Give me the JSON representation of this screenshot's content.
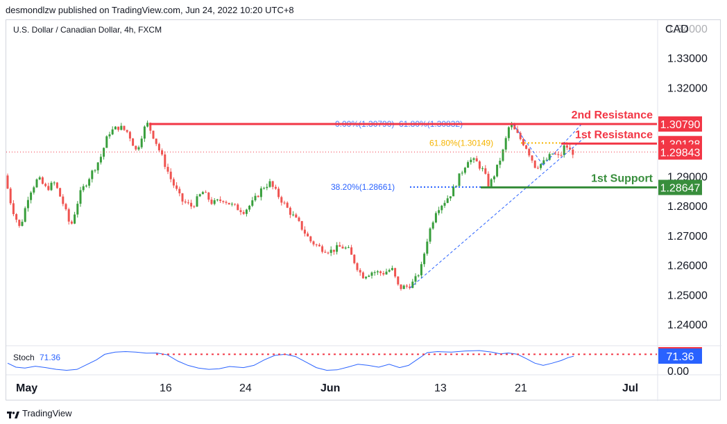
{
  "header": {
    "published": "desmondlzw published on TradingView.com, Jun 24, 2022 10:20 UTC+8"
  },
  "footer": {
    "brand": "TradingView"
  },
  "chart_data": {
    "type": "candlestick",
    "symbol_label": "U.S. Dollar / Canadian Dollar, 4h, FXCM",
    "currency_label": "CAD",
    "price_axis": {
      "ticks": [
        "1.34000",
        "1.33000",
        "1.32000",
        "1.29000",
        "1.28000",
        "1.27000",
        "1.26000",
        "1.25000",
        "1.24000"
      ],
      "ylim": [
        1.233,
        1.343
      ]
    },
    "time_axis": {
      "ticks": [
        "May",
        "16",
        "24",
        "Jun",
        "13",
        "21",
        "Jul"
      ]
    },
    "price_path": [
      [
        0,
        1.2905
      ],
      [
        10,
        1.28
      ],
      [
        22,
        1.2725
      ],
      [
        35,
        1.2845
      ],
      [
        48,
        1.2895
      ],
      [
        60,
        1.286
      ],
      [
        72,
        1.288
      ],
      [
        85,
        1.2805
      ],
      [
        95,
        1.273
      ],
      [
        108,
        1.284
      ],
      [
        122,
        1.29
      ],
      [
        138,
        1.2965
      ],
      [
        150,
        1.305
      ],
      [
        165,
        1.307
      ],
      [
        178,
        1.305
      ],
      [
        190,
        1.2985
      ],
      [
        200,
        1.306
      ],
      [
        206,
        1.3079
      ],
      [
        216,
        1.303
      ],
      [
        228,
        1.296
      ],
      [
        240,
        1.289
      ],
      [
        255,
        1.282
      ],
      [
        270,
        1.28
      ],
      [
        285,
        1.285
      ],
      [
        300,
        1.281
      ],
      [
        315,
        1.2825
      ],
      [
        330,
        1.28
      ],
      [
        345,
        1.2785
      ],
      [
        358,
        1.2815
      ],
      [
        372,
        1.2865
      ],
      [
        382,
        1.288
      ],
      [
        395,
        1.2835
      ],
      [
        410,
        1.2785
      ],
      [
        425,
        1.274
      ],
      [
        440,
        1.2685
      ],
      [
        455,
        1.266
      ],
      [
        470,
        1.265
      ],
      [
        485,
        1.2665
      ],
      [
        495,
        1.2655
      ],
      [
        505,
        1.261
      ],
      [
        515,
        1.2565
      ],
      [
        530,
        1.258
      ],
      [
        545,
        1.2575
      ],
      [
        558,
        1.259
      ],
      [
        568,
        1.2525
      ],
      [
        580,
        1.253
      ],
      [
        590,
        1.2545
      ],
      [
        600,
        1.259
      ],
      [
        610,
        1.27
      ],
      [
        622,
        1.279
      ],
      [
        635,
        1.282
      ],
      [
        645,
        1.285
      ],
      [
        655,
        1.29
      ],
      [
        668,
        1.296
      ],
      [
        680,
        1.295
      ],
      [
        690,
        1.292
      ],
      [
        698,
        1.2868
      ],
      [
        708,
        1.292
      ],
      [
        718,
        1.2985
      ],
      [
        728,
        1.308
      ],
      [
        740,
        1.304
      ],
      [
        752,
        1.3
      ],
      [
        765,
        1.2935
      ],
      [
        778,
        1.295
      ],
      [
        790,
        1.298
      ],
      [
        800,
        1.2965
      ],
      [
        808,
        1.301
      ],
      [
        816,
        1.2984
      ]
    ],
    "stochastic": {
      "label": "Stoch",
      "value": "71.36",
      "value_num": 71.36,
      "axis_ticks": [
        "0.00"
      ],
      "path": [
        [
          0,
          40
        ],
        [
          12,
          22
        ],
        [
          25,
          18
        ],
        [
          40,
          26
        ],
        [
          55,
          20
        ],
        [
          70,
          12
        ],
        [
          85,
          8
        ],
        [
          100,
          12
        ],
        [
          115,
          35
        ],
        [
          128,
          55
        ],
        [
          140,
          80
        ],
        [
          155,
          90
        ],
        [
          170,
          92
        ],
        [
          185,
          90
        ],
        [
          200,
          85
        ],
        [
          215,
          86
        ],
        [
          230,
          78
        ],
        [
          245,
          50
        ],
        [
          260,
          30
        ],
        [
          275,
          18
        ],
        [
          290,
          12
        ],
        [
          305,
          15
        ],
        [
          320,
          25
        ],
        [
          340,
          20
        ],
        [
          355,
          30
        ],
        [
          370,
          55
        ],
        [
          385,
          75
        ],
        [
          400,
          80
        ],
        [
          415,
          70
        ],
        [
          430,
          45
        ],
        [
          445,
          20
        ],
        [
          460,
          8
        ],
        [
          475,
          10
        ],
        [
          490,
          22
        ],
        [
          505,
          35
        ],
        [
          520,
          30
        ],
        [
          535,
          22
        ],
        [
          550,
          35
        ],
        [
          565,
          20
        ],
        [
          578,
          30
        ],
        [
          592,
          60
        ],
        [
          605,
          88
        ],
        [
          620,
          92
        ],
        [
          640,
          90
        ],
        [
          660,
          95
        ],
        [
          680,
          97
        ],
        [
          698,
          90
        ],
        [
          710,
          82
        ],
        [
          722,
          86
        ],
        [
          735,
          80
        ],
        [
          748,
          60
        ],
        [
          760,
          40
        ],
        [
          772,
          30
        ],
        [
          785,
          40
        ],
        [
          798,
          52
        ],
        [
          808,
          65
        ],
        [
          816,
          71.36
        ]
      ]
    },
    "levels": [
      {
        "name": "2nd Resistance",
        "price": 1.3079,
        "label_value": "1.30790",
        "color": "#f23645"
      },
      {
        "name": "1st Resistance",
        "price": 1.30128,
        "label_value": "1.30128",
        "color": "#f23645"
      },
      {
        "name": "1st Support",
        "price": 1.28647,
        "label_value": "1.28647",
        "color": "#388e3c"
      }
    ],
    "current_price": {
      "price": 1.29843,
      "label_value": "1.29843",
      "color": "#f23645"
    },
    "fib_labels": [
      {
        "text": "0.00%(1.30790)",
        "color": "#2962ff"
      },
      {
        "text": "61.80%(1.30832)",
        "color": "#2962ff"
      },
      {
        "text": "61.80%(1.30149)",
        "color": "#f5b400"
      },
      {
        "text": "38.20%(1.28661)",
        "color": "#2962ff"
      }
    ],
    "colors": {
      "up": "#26a69a",
      "up_body": "#389e3c",
      "down": "#ef5350",
      "stoch_line": "#2962ff"
    }
  }
}
